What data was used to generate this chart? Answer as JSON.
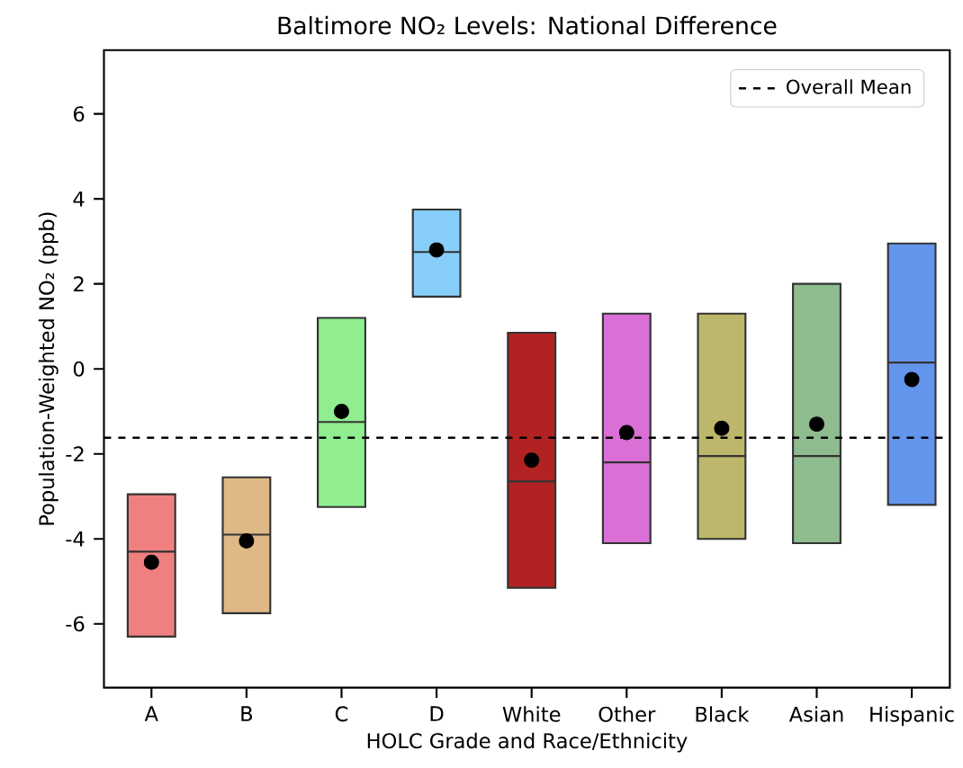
{
  "chart_data": {
    "type": "box",
    "title": "Baltimore NO₂ Levels: National Difference",
    "xlabel": "HOLC Grade and Race/Ethnicity",
    "ylabel": "Population-Weighted NO₂ (ppb)",
    "categories": [
      "A",
      "B",
      "C",
      "D",
      "White",
      "Other",
      "Black",
      "Asian",
      "Hispanic"
    ],
    "colors": [
      "#f08080",
      "#deb887",
      "#90ee90",
      "#87cefa",
      "#b22222",
      "#da70d6",
      "#bdb76b",
      "#8fbc8f",
      "#6495ed"
    ],
    "boxes": [
      {
        "low": -6.3,
        "q1": -6.3,
        "median": -4.3,
        "q3": -2.95,
        "high": -2.95,
        "mean": -4.55
      },
      {
        "low": -5.75,
        "q1": -5.75,
        "median": -3.9,
        "q3": -2.55,
        "high": -2.55,
        "mean": -4.05
      },
      {
        "low": -3.25,
        "q1": -3.25,
        "median": -1.25,
        "q3": 1.2,
        "high": 1.2,
        "mean": -1.0
      },
      {
        "low": 1.7,
        "q1": 1.7,
        "median": 2.75,
        "q3": 3.75,
        "high": 3.75,
        "mean": 2.8
      },
      {
        "low": -5.15,
        "q1": -5.15,
        "median": -2.65,
        "q3": 0.85,
        "high": 0.85,
        "mean": -2.15
      },
      {
        "low": -4.1,
        "q1": -4.1,
        "median": -2.2,
        "q3": 1.3,
        "high": 1.3,
        "mean": -1.5
      },
      {
        "low": -4.0,
        "q1": -4.0,
        "median": -2.05,
        "q3": 1.3,
        "high": 1.3,
        "mean": -1.4
      },
      {
        "low": -4.1,
        "q1": -4.1,
        "median": -2.05,
        "q3": 2.0,
        "high": 2.0,
        "mean": -1.3
      },
      {
        "low": -3.2,
        "q1": -3.2,
        "median": 0.15,
        "q3": 2.95,
        "high": 2.95,
        "mean": -0.25
      }
    ],
    "ylim": [
      -7.5,
      7.5
    ],
    "yticks": [
      -6,
      -4,
      -2,
      0,
      2,
      4,
      6
    ],
    "marker": "circle",
    "legend": "top right",
    "ref_lines": [
      {
        "axis": "y",
        "value": -1.62,
        "label": "Overall Mean",
        "line_style": "dashed",
        "color": "#000000"
      }
    ]
  }
}
